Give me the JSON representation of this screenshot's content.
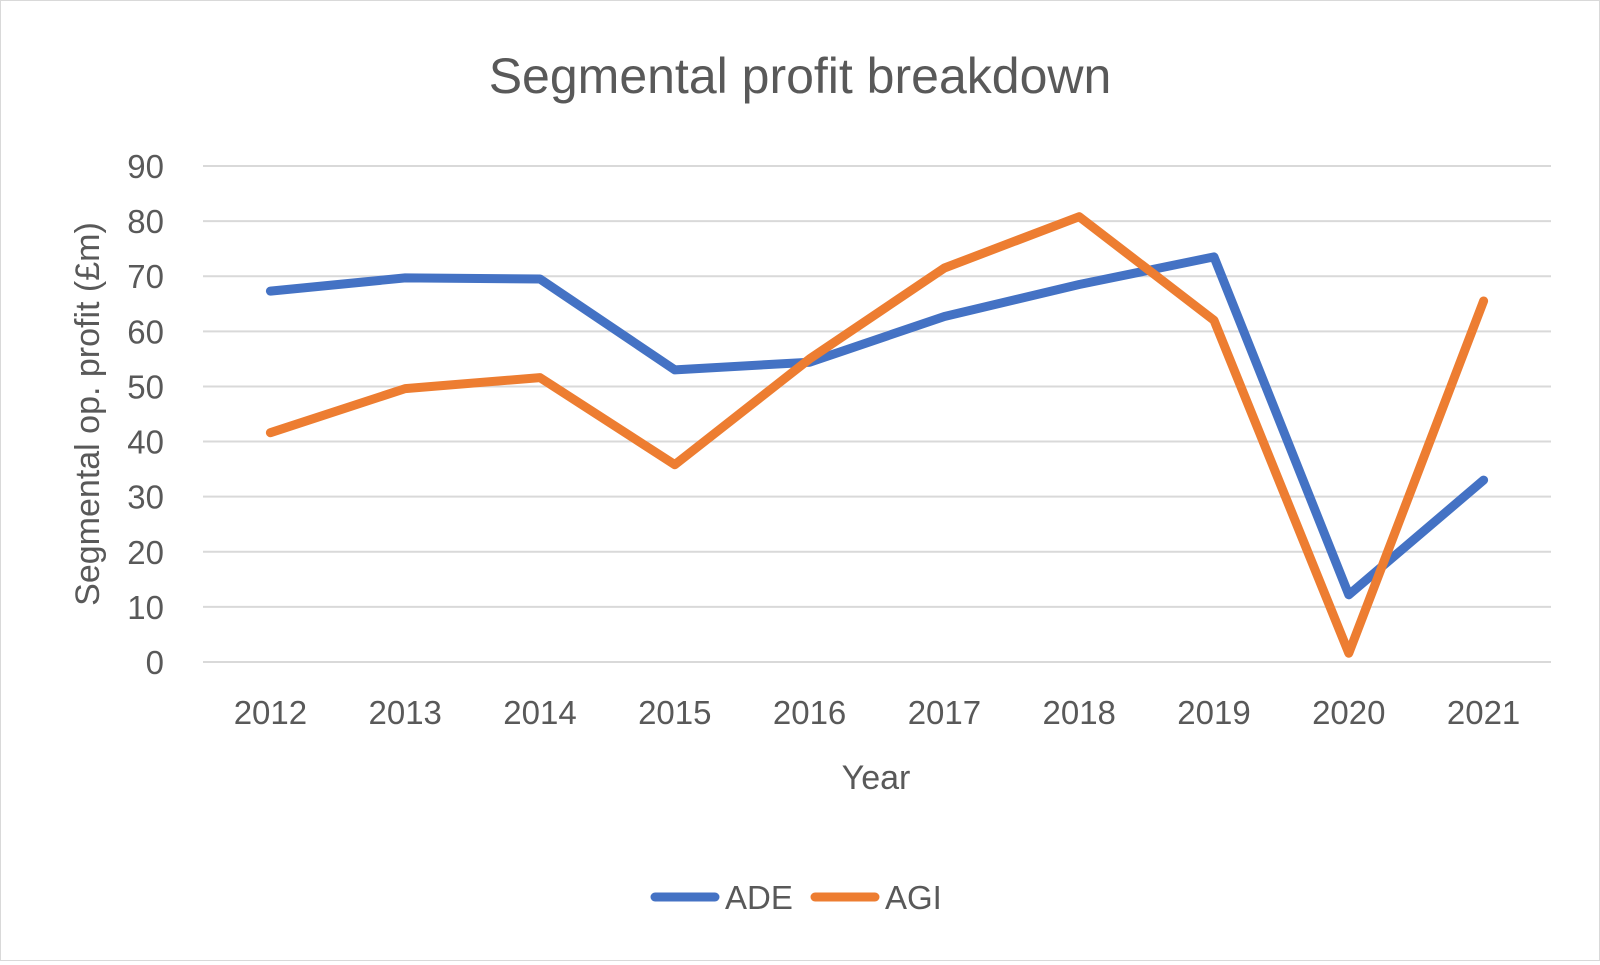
{
  "chart_data": {
    "type": "line",
    "title": "Segmental profit breakdown",
    "xlabel": "Year",
    "ylabel": "Segmental op. profit (£m)",
    "categories": [
      "2012",
      "2013",
      "2014",
      "2015",
      "2016",
      "2017",
      "2018",
      "2019",
      "2020",
      "2021"
    ],
    "ylim": [
      0,
      90
    ],
    "yticks": [
      0,
      10,
      20,
      30,
      40,
      50,
      60,
      70,
      80,
      90
    ],
    "grid": true,
    "legend_position": "bottom",
    "series": [
      {
        "name": "ADE",
        "color": "#4472C4",
        "values": [
          67.3,
          69.7,
          69.5,
          53.0,
          54.4,
          62.7,
          68.5,
          73.5,
          12.2,
          33.0
        ]
      },
      {
        "name": "AGI",
        "color": "#ED7D31",
        "values": [
          41.6,
          49.6,
          51.6,
          35.8,
          55.0,
          71.5,
          80.8,
          62.0,
          1.6,
          65.5
        ]
      }
    ]
  }
}
